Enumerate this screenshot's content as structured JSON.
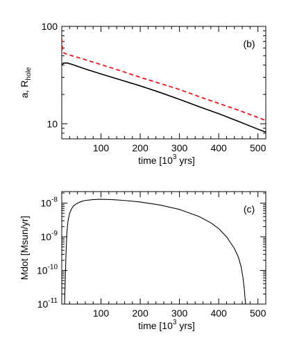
{
  "chart_data": [
    {
      "type": "line",
      "panel_label": "(b)",
      "xlabel": "time [10",
      "xlabel_sup": "3",
      "xlabel_end": " yrs]",
      "ylabel_main": "a, R",
      "ylabel_sub": "hole",
      "xlim": [
        0,
        520
      ],
      "ylim": [
        7,
        100
      ],
      "yscale": "log",
      "x_ticks": [
        100,
        200,
        300,
        400,
        500
      ],
      "y_ticks": [
        {
          "value": 10,
          "label": "10"
        },
        {
          "value": 100,
          "label": "100"
        }
      ],
      "series": [
        {
          "style": "solid",
          "color": "#000000",
          "x": [
            0,
            5,
            15,
            30,
            60,
            100,
            150,
            200,
            250,
            300,
            350,
            400,
            450,
            500,
            520
          ],
          "y": [
            40.5,
            42.0,
            42.0,
            40.2,
            36.5,
            32.5,
            28.2,
            24.5,
            21.0,
            17.8,
            15.0,
            12.7,
            10.6,
            8.8,
            8.2
          ]
        },
        {
          "style": "dashed",
          "color": "#e8161b",
          "x": [
            0,
            2,
            5,
            15,
            30,
            60,
            100,
            150,
            200,
            250,
            300,
            350,
            400,
            450,
            500,
            520
          ],
          "y": [
            75.0,
            58.0,
            53.5,
            51.5,
            49.5,
            45.5,
            40.5,
            35.0,
            30.0,
            26.0,
            22.5,
            19.0,
            16.2,
            13.8,
            11.6,
            10.8
          ]
        }
      ]
    },
    {
      "type": "line",
      "panel_label": "(c)",
      "xlabel": "time [10",
      "xlabel_sup": "3",
      "xlabel_end": " yrs]",
      "ylabel_main": "Mdot  [Msun/yr]",
      "xlim": [
        0,
        520
      ],
      "ylim": [
        1e-11,
        2.2e-08
      ],
      "yscale": "log",
      "x_ticks": [
        100,
        200,
        300,
        400,
        500
      ],
      "y_ticks": [
        {
          "value": 1e-11,
          "base": "10",
          "exp": "-11"
        },
        {
          "value": 1e-10,
          "base": "10",
          "exp": "-10"
        },
        {
          "value": 1e-09,
          "base": "10",
          "exp": "-9"
        },
        {
          "value": 1e-08,
          "base": "10",
          "exp": "-8"
        }
      ],
      "series": [
        {
          "style": "solid",
          "color": "#000000",
          "x": [
            7,
            9,
            11,
            13,
            16,
            20,
            25,
            30,
            40,
            50,
            60,
            80,
            100,
            130,
            160,
            200,
            250,
            300,
            350,
            380,
            400,
            420,
            440,
            450,
            457,
            462,
            465,
            467,
            468.5
          ],
          "y": [
            1e-11,
            6e-11,
            3.5e-10,
            1.3e-09,
            3e-09,
            5e-09,
            6.8e-09,
            8.3e-09,
            1e-08,
            1.12e-08,
            1.2e-08,
            1.28e-08,
            1.3e-08,
            1.27e-08,
            1.2e-08,
            1.08e-08,
            8.8e-09,
            6.5e-09,
            4e-09,
            2.6e-09,
            1.75e-09,
            1e-09,
            4.5e-10,
            2.5e-10,
            1.3e-10,
            6e-11,
            3e-11,
            1.6e-11,
            1e-11
          ]
        }
      ]
    }
  ]
}
